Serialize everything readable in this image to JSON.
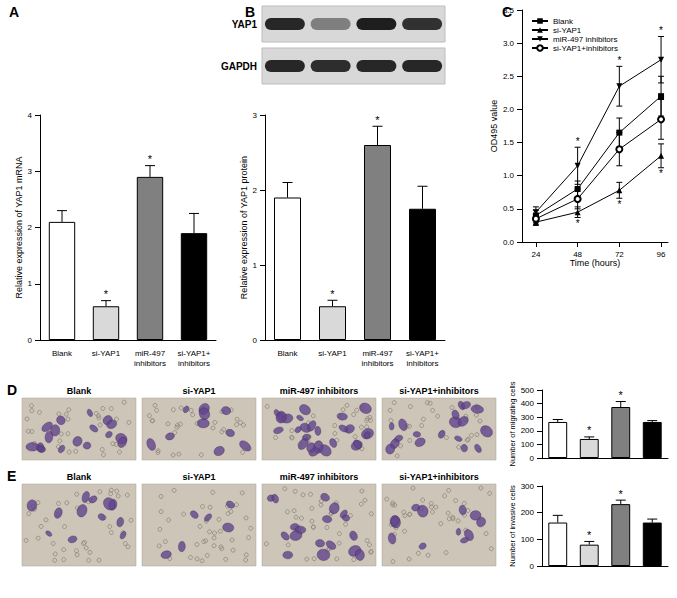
{
  "chart_data": [
    {
      "type": "bar",
      "title": "A",
      "ylabel": "Relative expression of YAP1 mRNA",
      "categories": [
        "Blank",
        "si-YAP1",
        "miR-497 inhibitors",
        "si-YAP1+inhibitors"
      ],
      "values": [
        2.1,
        0.6,
        2.9,
        1.9
      ],
      "errors": [
        0.2,
        0.1,
        0.2,
        0.35
      ],
      "colors": [
        "#ffffff",
        "#d9d9d9",
        "#808080",
        "#000000"
      ],
      "ylim": [
        0,
        4
      ],
      "yticks": [
        0,
        1,
        2,
        3,
        4
      ],
      "annotations": [
        {
          "category": "si-YAP1",
          "text": "*"
        },
        {
          "category": "miR-497 inhibitors",
          "text": "*"
        }
      ]
    },
    {
      "type": "bar",
      "ylabel": "Relative expression of YAP1 protein",
      "categories": [
        "Blank",
        "si-YAP1",
        "miR-497 inhibitors",
        "si-YAP1+inhibitors"
      ],
      "values": [
        1.9,
        0.45,
        2.6,
        1.75
      ],
      "errors": [
        0.2,
        0.08,
        0.25,
        0.3
      ],
      "colors": [
        "#ffffff",
        "#d9d9d9",
        "#808080",
        "#000000"
      ],
      "ylim": [
        0,
        3
      ],
      "yticks": [
        0,
        1,
        2,
        3
      ],
      "annotations": [
        {
          "category": "si-YAP1",
          "text": "*"
        },
        {
          "category": "miR-497 inhibitors",
          "text": "*"
        }
      ]
    },
    {
      "type": "line",
      "title": "C",
      "xlabel": "Time (hours)",
      "ylabel": "OD495 value",
      "x": [
        24,
        48,
        72,
        96
      ],
      "xlim": [
        16,
        100
      ],
      "xticks": [
        24,
        48,
        72,
        96
      ],
      "ylim": [
        0,
        3.5
      ],
      "yticks": [
        {
          "value": 0,
          "label": "0.0"
        },
        0.5,
        {
          "value": 1,
          "label": "1.0"
        },
        1.5,
        {
          "value": 2,
          "label": "2.0"
        },
        2.5,
        {
          "value": 3,
          "label": "3.0"
        },
        3.5
      ],
      "legend": "upper left",
      "series": [
        {
          "name": "Blank",
          "color": "#000000",
          "marker": "square",
          "values": [
            0.4,
            0.8,
            1.65,
            2.2
          ],
          "errors": [
            0.08,
            0.12,
            0.22,
            0.3
          ]
        },
        {
          "name": "si-YAP1",
          "color": "#000000",
          "marker": "triangle",
          "values": [
            0.3,
            0.45,
            0.78,
            1.3
          ],
          "errors": [
            0.05,
            0.08,
            0.12,
            0.18
          ]
        },
        {
          "name": "miR-497 inhibitors",
          "color": "#000000",
          "marker": "triangle-down",
          "values": [
            0.45,
            1.15,
            2.35,
            2.75
          ],
          "errors": [
            0.08,
            0.28,
            0.3,
            0.35
          ]
        },
        {
          "name": "si-YAP1+inhibitors",
          "color": "#000000",
          "marker": "circle-open",
          "values": [
            0.35,
            0.65,
            1.4,
            1.85
          ],
          "errors": [
            0.06,
            0.15,
            0.25,
            0.3
          ]
        }
      ],
      "annotations": [
        {
          "series": "miR-497 inhibitors",
          "x": 48,
          "text": "*",
          "position": "above"
        },
        {
          "series": "miR-497 inhibitors",
          "x": 72,
          "text": "*",
          "position": "above"
        },
        {
          "series": "miR-497 inhibitors",
          "x": 96,
          "text": "*",
          "position": "above"
        },
        {
          "series": "si-YAP1",
          "x": 48,
          "text": "*",
          "position": "below"
        },
        {
          "series": "si-YAP1",
          "x": 72,
          "text": "*",
          "position": "below"
        },
        {
          "series": "si-YAP1",
          "x": 96,
          "text": "*",
          "position": "below"
        }
      ]
    },
    {
      "type": "bar",
      "ylabel": "Number of migrating cells",
      "categories": [
        "Blank",
        "si-YAP1",
        "miR-497 inhibitors",
        "si-YAP1+inhibitors"
      ],
      "tick_labels": "y",
      "values": [
        265,
        140,
        375,
        265
      ],
      "errors": [
        18,
        15,
        40,
        10
      ],
      "colors": [
        "#ffffff",
        "#d9d9d9",
        "#808080",
        "#000000"
      ],
      "ylim": [
        0,
        500
      ],
      "yticks": [
        0,
        100,
        200,
        300,
        400,
        500
      ],
      "annotations": [
        {
          "category": "si-YAP1",
          "text": "*"
        },
        {
          "category": "miR-497 inhibitors",
          "text": "*"
        }
      ]
    },
    {
      "type": "bar",
      "ylabel": "Number of invasive cells",
      "categories": [
        "Blank",
        "si-YAP1",
        "miR-497 inhibitors",
        "si-YAP1+inhibitors"
      ],
      "tick_labels": "y",
      "values": [
        163,
        80,
        232,
        163
      ],
      "errors": [
        27,
        12,
        15,
        13
      ],
      "colors": [
        "#ffffff",
        "#d9d9d9",
        "#808080",
        "#000000"
      ],
      "ylim": [
        0,
        300
      ],
      "yticks": [
        0,
        100,
        200,
        300
      ],
      "annotations": [
        {
          "category": "si-YAP1",
          "text": "*"
        },
        {
          "category": "miR-497 inhibitors",
          "text": "*"
        }
      ]
    }
  ],
  "panels": {
    "blot": {
      "label": "B",
      "bands": [
        "YAP1",
        "GAPDH"
      ]
    },
    "micrographs": [
      {
        "label": "D",
        "images": [
          "Blank",
          "si-YAP1",
          "miR-497 inhibitors",
          "si-YAP1+inhibitors"
        ]
      },
      {
        "label": "E",
        "images": [
          "Blank",
          "si-YAP1",
          "miR-497 inhibitors",
          "si-YAP1+inhibitors"
        ]
      }
    ]
  }
}
